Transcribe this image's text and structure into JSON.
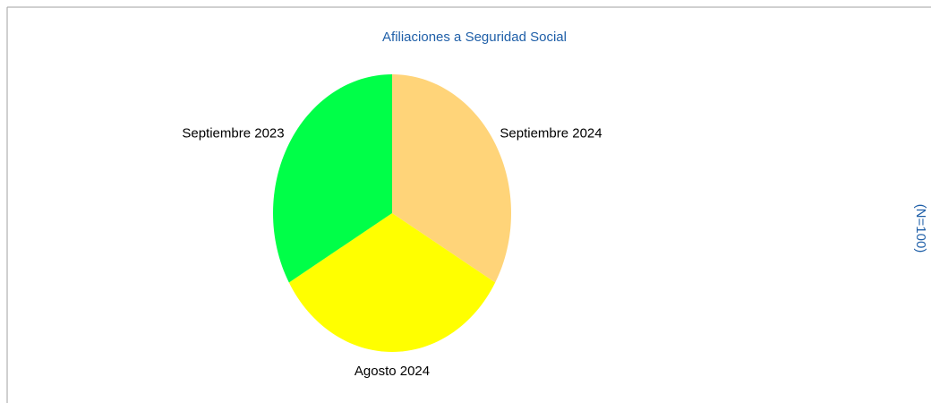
{
  "chart_data": {
    "type": "pie",
    "title": "Afiliaciones a Seguridad Social",
    "note": "(N=100)",
    "categories": [
      "Septiembre 2024",
      "Agosto 2024",
      "Septiembre 2023"
    ],
    "values": [
      33.3,
      33.3,
      33.3
    ],
    "colors": [
      "#ffd479",
      "#ffff00",
      "#00ff48"
    ]
  }
}
